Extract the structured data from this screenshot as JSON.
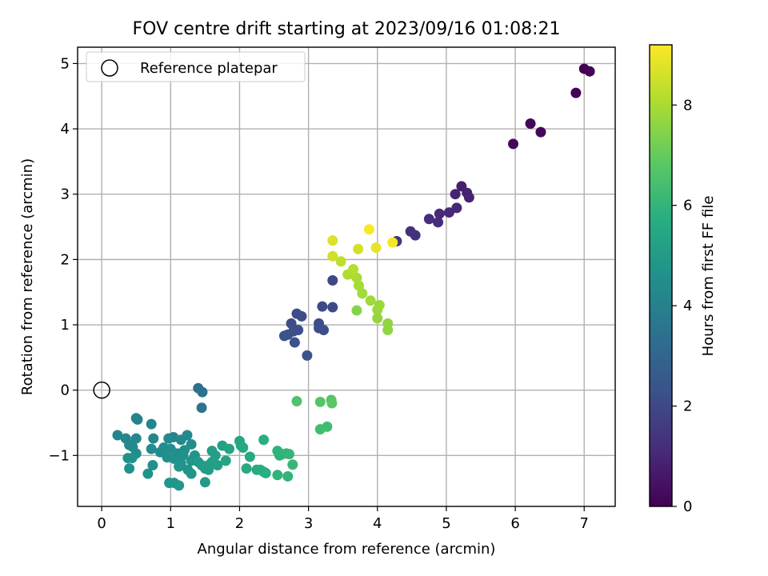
{
  "chart_data": {
    "type": "scatter",
    "title": "FOV centre drift starting at 2023/09/16 01:08:21",
    "xlabel": "Angular distance from reference (arcmin)",
    "ylabel": "Rotation from reference (arcmin)",
    "xlim": [
      -0.35,
      7.45
    ],
    "ylim": [
      -1.78,
      5.25
    ],
    "xticks": [
      0,
      1,
      2,
      3,
      4,
      5,
      6,
      7
    ],
    "yticks": [
      -1,
      0,
      1,
      2,
      3,
      4,
      5
    ],
    "grid": true,
    "legend": {
      "placement": "top-left",
      "entries": [
        "Reference platepar"
      ]
    },
    "reference_point": {
      "name": "Reference platepar",
      "x": 0,
      "y": 0
    },
    "colorbar": {
      "label": "Hours from first FF file",
      "colormap": "viridis",
      "range": [
        0,
        9.2
      ],
      "ticks": [
        0,
        2,
        4,
        6,
        8
      ]
    },
    "series": [
      {
        "name": "",
        "points": [
          [
            7.0,
            4.92,
            0.02
          ],
          [
            7.08,
            4.88,
            0.04
          ],
          [
            6.88,
            4.55,
            0.06
          ],
          [
            6.22,
            4.08,
            0.15
          ],
          [
            6.37,
            3.95,
            0.18
          ],
          [
            5.97,
            3.77,
            0.22
          ],
          [
            5.22,
            3.12,
            0.8
          ],
          [
            5.3,
            3.02,
            0.85
          ],
          [
            5.13,
            3.0,
            0.9
          ],
          [
            5.33,
            2.95,
            0.88
          ],
          [
            5.15,
            2.79,
            1.0
          ],
          [
            5.04,
            2.72,
            1.05
          ],
          [
            4.9,
            2.7,
            1.1
          ],
          [
            4.75,
            2.62,
            1.15
          ],
          [
            4.88,
            2.57,
            1.12
          ],
          [
            4.48,
            2.43,
            1.25
          ],
          [
            4.55,
            2.37,
            1.3
          ],
          [
            4.28,
            2.28,
            1.35
          ],
          [
            3.35,
            1.68,
            2.0
          ],
          [
            3.2,
            1.28,
            2.05
          ],
          [
            3.35,
            1.27,
            2.05
          ],
          [
            2.83,
            1.17,
            2.1
          ],
          [
            2.9,
            1.13,
            2.15
          ],
          [
            2.75,
            1.02,
            2.12
          ],
          [
            3.15,
            1.02,
            2.15
          ],
          [
            2.85,
            0.92,
            2.2
          ],
          [
            3.15,
            0.95,
            2.18
          ],
          [
            3.22,
            0.92,
            2.2
          ],
          [
            2.78,
            0.9,
            2.2
          ],
          [
            2.7,
            0.85,
            2.25
          ],
          [
            2.65,
            0.83,
            2.25
          ],
          [
            2.8,
            0.73,
            2.3
          ],
          [
            2.98,
            0.53,
            2.35
          ],
          [
            1.4,
            0.03,
            3.4
          ],
          [
            1.46,
            -0.03,
            3.45
          ],
          [
            1.45,
            -0.27,
            3.5
          ],
          [
            0.5,
            -0.43,
            4.05
          ],
          [
            0.52,
            -0.45,
            4.05
          ],
          [
            0.72,
            -0.52,
            4.1
          ],
          [
            0.23,
            -0.69,
            4.15
          ],
          [
            1.04,
            -0.72,
            4.1
          ],
          [
            1.24,
            -0.69,
            4.3
          ],
          [
            0.35,
            -0.74,
            4.2
          ],
          [
            0.5,
            -0.74,
            4.25
          ],
          [
            0.75,
            -0.74,
            4.2
          ],
          [
            0.97,
            -0.74,
            4.25
          ],
          [
            1.15,
            -0.76,
            4.3
          ],
          [
            1.3,
            -0.83,
            4.5
          ],
          [
            0.4,
            -0.84,
            4.3
          ],
          [
            0.45,
            -0.87,
            4.35
          ],
          [
            0.72,
            -0.9,
            4.4
          ],
          [
            0.9,
            -0.88,
            4.4
          ],
          [
            1.0,
            -0.9,
            4.45
          ],
          [
            1.2,
            -0.92,
            4.5
          ],
          [
            0.85,
            -0.95,
            4.45
          ],
          [
            1.1,
            -0.97,
            4.5
          ],
          [
            0.5,
            -0.97,
            4.5
          ],
          [
            0.38,
            -1.04,
            4.55
          ],
          [
            0.95,
            -1.03,
            4.55
          ],
          [
            1.05,
            -1.05,
            4.55
          ],
          [
            1.18,
            -1.0,
            4.6
          ],
          [
            1.35,
            -1.0,
            4.7
          ],
          [
            1.3,
            -1.08,
            4.7
          ],
          [
            0.44,
            -1.04,
            4.6
          ],
          [
            1.15,
            -1.12,
            4.7
          ],
          [
            0.74,
            -1.15,
            4.6
          ],
          [
            0.4,
            -1.2,
            4.65
          ],
          [
            1.12,
            -1.17,
            4.7
          ],
          [
            1.25,
            -1.22,
            4.75
          ],
          [
            0.67,
            -1.28,
            4.65
          ],
          [
            1.3,
            -1.28,
            4.75
          ],
          [
            0.98,
            -1.42,
            4.8
          ],
          [
            1.05,
            -1.42,
            4.8
          ],
          [
            1.12,
            -1.46,
            4.85
          ],
          [
            1.5,
            -1.41,
            5.0
          ],
          [
            1.4,
            -1.1,
            4.9
          ],
          [
            1.45,
            -1.15,
            5.0
          ],
          [
            1.5,
            -1.2,
            5.0
          ],
          [
            1.55,
            -1.15,
            5.05
          ],
          [
            1.6,
            -0.93,
            5.1
          ],
          [
            1.65,
            -1.0,
            5.15
          ],
          [
            1.6,
            -1.1,
            5.1
          ],
          [
            1.68,
            -1.15,
            5.15
          ],
          [
            1.55,
            -1.22,
            5.05
          ],
          [
            1.75,
            -0.85,
            5.2
          ],
          [
            1.8,
            -1.08,
            5.3
          ],
          [
            1.85,
            -0.9,
            5.3
          ],
          [
            2.0,
            -0.78,
            5.4
          ],
          [
            2.02,
            -0.85,
            5.45
          ],
          [
            2.05,
            -0.88,
            5.5
          ],
          [
            2.15,
            -1.02,
            5.55
          ],
          [
            2.1,
            -1.2,
            5.6
          ],
          [
            2.25,
            -1.22,
            5.65
          ],
          [
            2.3,
            -1.22,
            5.7
          ],
          [
            2.35,
            -1.25,
            5.75
          ],
          [
            2.38,
            -1.27,
            5.8
          ],
          [
            2.35,
            -0.76,
            5.75
          ],
          [
            2.55,
            -0.93,
            5.9
          ],
          [
            2.58,
            -1.0,
            5.9
          ],
          [
            2.62,
            -0.98,
            5.95
          ],
          [
            2.68,
            -0.97,
            6.0
          ],
          [
            2.72,
            -0.98,
            6.05
          ],
          [
            2.55,
            -1.3,
            5.95
          ],
          [
            2.7,
            -1.32,
            6.0
          ],
          [
            2.77,
            -1.14,
            6.1
          ],
          [
            3.27,
            -0.56,
            6.3
          ],
          [
            3.17,
            -0.6,
            6.35
          ],
          [
            2.83,
            -0.17,
            6.6
          ],
          [
            3.17,
            -0.18,
            6.7
          ],
          [
            3.33,
            -0.15,
            6.7
          ],
          [
            3.34,
            -0.2,
            6.8
          ],
          [
            3.7,
            1.22,
            7.5
          ],
          [
            4.15,
            0.92,
            7.6
          ],
          [
            4.15,
            1.02,
            7.65
          ],
          [
            4.0,
            1.1,
            7.7
          ],
          [
            4.0,
            1.23,
            7.75
          ],
          [
            4.03,
            1.3,
            7.8
          ],
          [
            3.9,
            1.37,
            7.85
          ],
          [
            3.78,
            1.48,
            7.9
          ],
          [
            3.73,
            1.6,
            7.95
          ],
          [
            3.7,
            1.72,
            8.0
          ],
          [
            3.62,
            1.78,
            8.05
          ],
          [
            3.57,
            1.77,
            8.1
          ],
          [
            3.65,
            1.85,
            8.15
          ],
          [
            3.47,
            1.97,
            8.3
          ],
          [
            3.35,
            2.05,
            8.5
          ],
          [
            3.72,
            2.16,
            8.6
          ],
          [
            3.35,
            2.29,
            8.7
          ],
          [
            3.98,
            2.18,
            8.9
          ],
          [
            4.22,
            2.26,
            9.05
          ],
          [
            3.88,
            2.46,
            9.15
          ]
        ]
      }
    ]
  }
}
